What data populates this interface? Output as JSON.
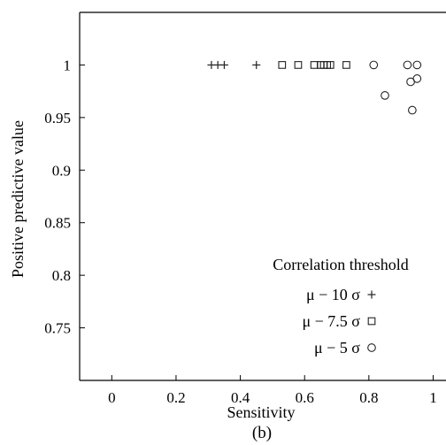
{
  "chart_data": {
    "type": "scatter",
    "title": "",
    "xlabel": "Sensitivity",
    "ylabel": "Positive predictive value",
    "panel_label": "(b)",
    "xlim": [
      -0.1,
      1.04
    ],
    "ylim": [
      0.7,
      1.05
    ],
    "x_ticks": [
      0,
      0.2,
      0.4,
      0.6,
      0.8,
      1
    ],
    "x_tick_labels": [
      "0",
      "0.2",
      "0.4",
      "0.6",
      "0.8",
      "1"
    ],
    "y_ticks": [
      0.75,
      0.8,
      0.85,
      0.9,
      0.95,
      1
    ],
    "y_tick_labels": [
      "0.75",
      "0.8",
      "0.85",
      "0.9",
      "0.95",
      "1"
    ],
    "grid": false,
    "legend": {
      "title": "Correlation threshold",
      "placement": "bottom-right",
      "entries": [
        "μ − 10 σ",
        "μ − 7.5 σ",
        "μ − 5 σ"
      ]
    },
    "series": [
      {
        "name": "μ − 10 σ",
        "marker": "plus",
        "points": [
          {
            "x": 0.31,
            "y": 1.0
          },
          {
            "x": 0.33,
            "y": 1.0
          },
          {
            "x": 0.35,
            "y": 1.0
          },
          {
            "x": 0.45,
            "y": 1.0
          }
        ]
      },
      {
        "name": "μ − 7.5 σ",
        "marker": "square",
        "points": [
          {
            "x": 0.53,
            "y": 1.0
          },
          {
            "x": 0.58,
            "y": 1.0
          },
          {
            "x": 0.63,
            "y": 1.0
          },
          {
            "x": 0.65,
            "y": 1.0
          },
          {
            "x": 0.66,
            "y": 1.0
          },
          {
            "x": 0.67,
            "y": 1.0
          },
          {
            "x": 0.68,
            "y": 1.0
          },
          {
            "x": 0.73,
            "y": 1.0
          }
        ]
      },
      {
        "name": "μ − 5 σ",
        "marker": "circle",
        "points": [
          {
            "x": 0.815,
            "y": 1.0
          },
          {
            "x": 0.85,
            "y": 0.971
          },
          {
            "x": 0.92,
            "y": 1.0
          },
          {
            "x": 0.93,
            "y": 0.984
          },
          {
            "x": 0.935,
            "y": 0.957
          },
          {
            "x": 0.95,
            "y": 1.0
          },
          {
            "x": 0.95,
            "y": 0.987
          }
        ]
      }
    ]
  }
}
